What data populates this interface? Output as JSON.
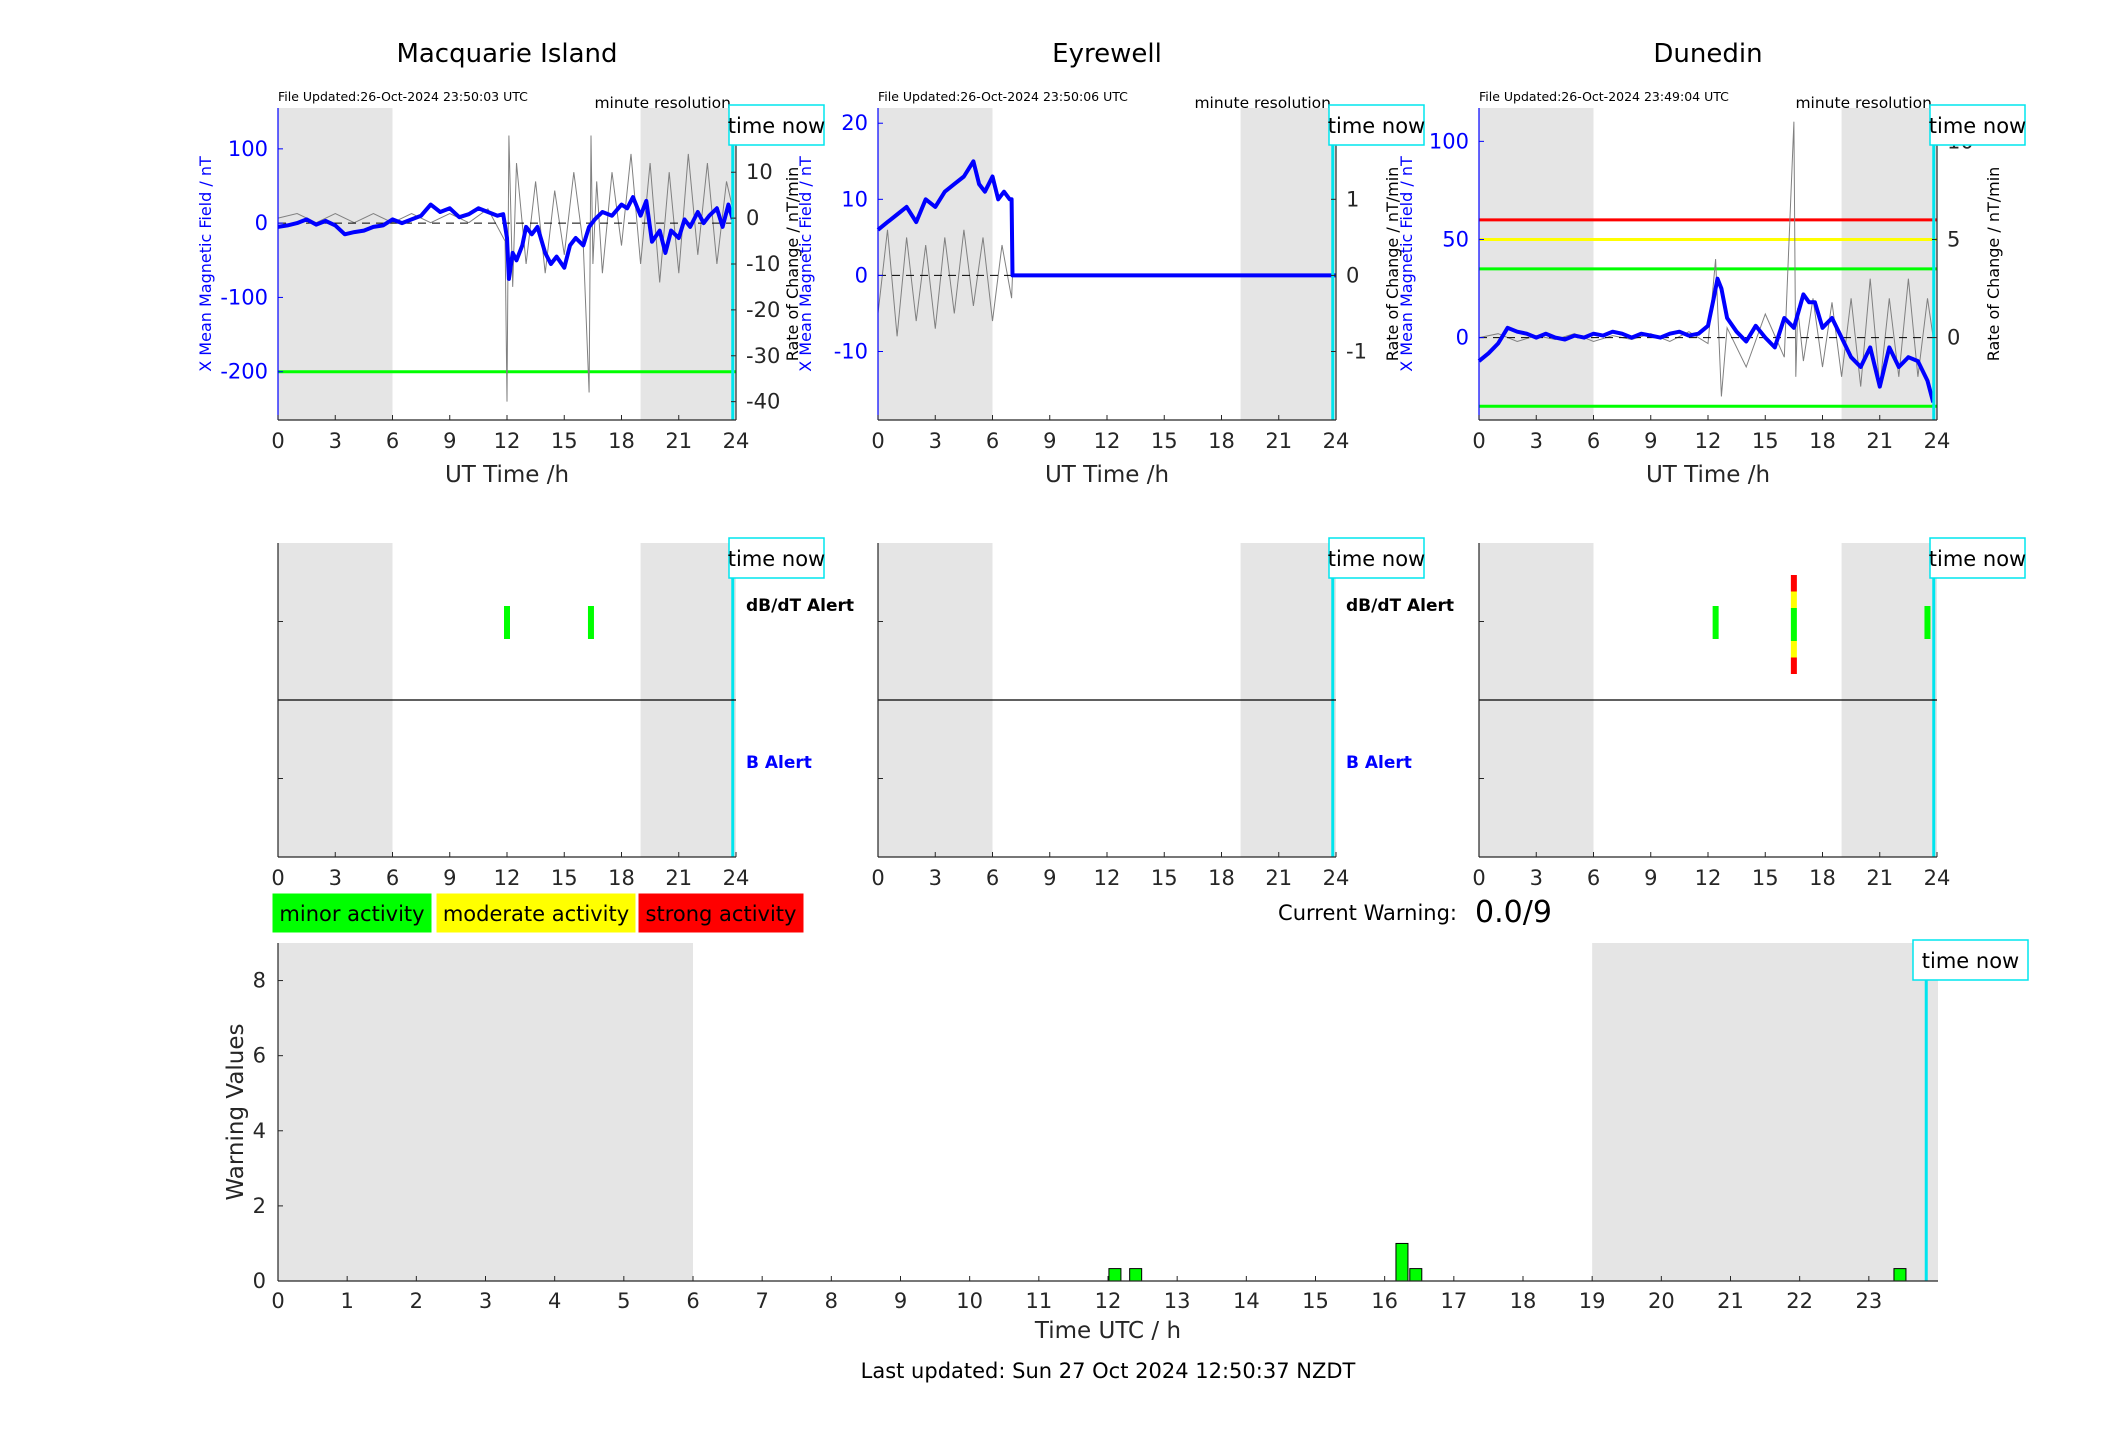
{
  "colors": {
    "shade": "#e5e5e5",
    "field": "#0000ff",
    "rate": "#808080",
    "time_now": "#00e5ee",
    "minor": "#00ff00",
    "moderate": "#ffff00",
    "strong": "#ff0000",
    "axis": "#262626"
  },
  "labels": {
    "file_updated_prefix": "File Updated:",
    "minute_resolution": "minute resolution",
    "time_now": "time now",
    "ut_xlabel": "UT Time /h",
    "left_ylabel": "X Mean Magnetic Field / nT",
    "right_ylabel": "Rate of Change / nT/min",
    "dbdt_alert": "dB/dT Alert",
    "b_alert": "B Alert"
  },
  "legend": [
    {
      "key": "minor",
      "label": "minor activity"
    },
    {
      "key": "moderate",
      "label": "moderate activity"
    },
    {
      "key": "strong",
      "label": "strong activity"
    }
  ],
  "current_warning": {
    "label": "Current Warning:",
    "value": "0.0/9"
  },
  "footer": "Last updated: Sun 27 Oct 2024 12:50:37 NZDT",
  "chart_data": [
    {
      "type": "line",
      "title": "Macquarie Island",
      "file_updated": "26-Oct-2024 23:50:03 UTC",
      "xlabel": "UT Time /h",
      "ylabel_left": "X Mean Magnetic Field / nT",
      "ylabel_right": "Rate of Change / nT/min",
      "xlim": [
        0,
        24
      ],
      "xticks": [
        0,
        3,
        6,
        9,
        12,
        15,
        18,
        21,
        24
      ],
      "ylim_left": [
        -265,
        155
      ],
      "yticks_left": [
        100,
        0,
        -100,
        -200
      ],
      "ylim_right": [
        -44,
        24
      ],
      "yticks_right": [
        20,
        10,
        0,
        -10,
        -20,
        -30,
        -40
      ],
      "shaded_hours": [
        [
          0,
          6
        ],
        [
          19,
          24
        ]
      ],
      "time_now_h": 23.83,
      "threshold_lines": [
        {
          "value": -200,
          "color": "#00ff00"
        }
      ],
      "field_series": {
        "name": "X Mean Magnetic Field",
        "x": [
          0,
          0.5,
          1,
          1.5,
          2,
          2.5,
          3,
          3.5,
          4,
          4.5,
          5,
          5.5,
          6,
          6.5,
          7,
          7.5,
          8,
          8.5,
          9,
          9.5,
          10,
          10.5,
          11,
          11.5,
          11.8,
          12,
          12.1,
          12.3,
          12.5,
          12.8,
          13,
          13.3,
          13.6,
          14,
          14.3,
          14.6,
          15,
          15.3,
          15.6,
          16,
          16.3,
          16.6,
          17,
          17.5,
          18,
          18.3,
          18.6,
          19,
          19.3,
          19.6,
          20,
          20.3,
          20.6,
          21,
          21.3,
          21.6,
          22,
          22.3,
          22.6,
          23,
          23.3,
          23.6,
          23.83
        ],
        "y": [
          -5,
          -3,
          0,
          5,
          -2,
          3,
          -3,
          -15,
          -12,
          -10,
          -5,
          -3,
          5,
          0,
          5,
          10,
          25,
          15,
          20,
          8,
          12,
          20,
          15,
          10,
          12,
          -20,
          -75,
          -40,
          -50,
          -30,
          -5,
          -15,
          -5,
          -40,
          -55,
          -45,
          -60,
          -30,
          -20,
          -30,
          -5,
          5,
          15,
          10,
          25,
          20,
          35,
          10,
          30,
          -25,
          -10,
          -40,
          -10,
          -20,
          5,
          -5,
          15,
          0,
          10,
          20,
          -5,
          25,
          5
        ],
        "ylim": [
          -265,
          155
        ]
      },
      "rate_series": {
        "name": "Rate of Change",
        "x": [
          0,
          1,
          2,
          3,
          4,
          5,
          6,
          7,
          8,
          9,
          10,
          11,
          11.9,
          12,
          12.1,
          12.3,
          12.5,
          13,
          13.5,
          14,
          14.5,
          15,
          15.5,
          16,
          16.3,
          16.4,
          16.5,
          16.7,
          17,
          17.5,
          18,
          18.5,
          19,
          19.5,
          20,
          20.5,
          21,
          21.5,
          22,
          22.5,
          23,
          23.5,
          23.83
        ],
        "y": [
          0,
          1,
          -1,
          1,
          -1,
          1,
          -1,
          1,
          -1,
          1,
          -1,
          2,
          -5,
          -40,
          18,
          -15,
          12,
          -10,
          8,
          -12,
          6,
          -8,
          10,
          -6,
          -38,
          18,
          -10,
          8,
          -12,
          10,
          -6,
          14,
          -10,
          12,
          -14,
          10,
          -12,
          14,
          -8,
          12,
          -10,
          8,
          2
        ],
        "ylim": [
          -44,
          24
        ]
      },
      "zero_lines": {
        "left": 0,
        "right": 0
      }
    },
    {
      "type": "line",
      "title": "Eyrewell",
      "file_updated": "26-Oct-2024 23:50:06 UTC",
      "xlabel": "UT Time /h",
      "ylabel_left": "X Mean Magnetic Field / nT",
      "ylabel_right": "Rate of Change / nT/min",
      "xlim": [
        0,
        24
      ],
      "xticks": [
        0,
        3,
        6,
        9,
        12,
        15,
        18,
        21,
        24
      ],
      "ylim_left": [
        -19,
        22
      ],
      "yticks_left": [
        20,
        10,
        0,
        -10
      ],
      "ylim_right": [
        -1.9,
        2.2
      ],
      "yticks_right": [
        2,
        1,
        0,
        -1
      ],
      "shaded_hours": [
        [
          0,
          6
        ],
        [
          19,
          24
        ]
      ],
      "time_now_h": 23.83,
      "threshold_lines": [],
      "field_series": {
        "name": "X Mean Magnetic Field",
        "x": [
          0,
          0.5,
          1,
          1.5,
          2,
          2.5,
          3,
          3.5,
          4,
          4.5,
          5,
          5.3,
          5.6,
          6,
          6.3,
          6.6,
          6.9,
          7.0,
          7.05,
          24
        ],
        "y": [
          6,
          7,
          8,
          9,
          7,
          10,
          9,
          11,
          12,
          13,
          15,
          12,
          11,
          13,
          10,
          11,
          10,
          10,
          0,
          0
        ],
        "ylim": [
          -19,
          22
        ]
      },
      "rate_series": {
        "name": "Rate of Change",
        "x": [
          0,
          0.5,
          1,
          1.5,
          2,
          2.5,
          3,
          3.5,
          4,
          4.5,
          5,
          5.5,
          6,
          6.5,
          7,
          7.05,
          24
        ],
        "y": [
          -0.5,
          0.6,
          -0.8,
          0.5,
          -0.6,
          0.4,
          -0.7,
          0.5,
          -0.5,
          0.6,
          -0.4,
          0.5,
          -0.6,
          0.4,
          -0.3,
          0,
          0
        ],
        "ylim": [
          -1.9,
          2.2
        ]
      },
      "zero_lines": {
        "left": 0,
        "right": 0
      }
    },
    {
      "type": "line",
      "title": "Dunedin",
      "file_updated": "26-Oct-2024 23:49:04 UTC",
      "xlabel": "UT Time /h",
      "ylabel_left": "X Mean Magnetic Field / nT",
      "ylabel_right": "Rate of Change / nT/min",
      "xlim": [
        0,
        24
      ],
      "xticks": [
        0,
        3,
        6,
        9,
        12,
        15,
        18,
        21,
        24
      ],
      "ylim_left": [
        -42,
        117
      ],
      "yticks_left": [
        100,
        50,
        0
      ],
      "ylim_right": [
        -4.2,
        11.7
      ],
      "yticks_right": [
        10,
        5,
        0
      ],
      "shaded_hours": [
        [
          0,
          6
        ],
        [
          19,
          24
        ]
      ],
      "time_now_h": 23.83,
      "threshold_lines": [
        {
          "value": 60,
          "color": "#ff0000"
        },
        {
          "value": 50,
          "color": "#ffff00"
        },
        {
          "value": 35,
          "color": "#00ff00"
        },
        {
          "value": -35,
          "color": "#00ff00"
        }
      ],
      "field_series": {
        "name": "X Mean Magnetic Field",
        "x": [
          0,
          0.5,
          1,
          1.5,
          2,
          2.5,
          3,
          3.5,
          4,
          4.5,
          5,
          5.5,
          6,
          6.5,
          7,
          7.5,
          8,
          8.5,
          9,
          9.5,
          10,
          10.5,
          11,
          11.5,
          12,
          12.3,
          12.5,
          12.7,
          13,
          13.5,
          14,
          14.5,
          15,
          15.5,
          16,
          16.5,
          17,
          17.3,
          17.6,
          18,
          18.5,
          19,
          19.5,
          20,
          20.5,
          21,
          21.5,
          22,
          22.5,
          23,
          23.5,
          23.8
        ],
        "y": [
          -12,
          -8,
          -3,
          5,
          3,
          2,
          0,
          2,
          0,
          -1,
          1,
          0,
          2,
          1,
          3,
          2,
          0,
          2,
          1,
          0,
          2,
          3,
          1,
          2,
          6,
          20,
          30,
          25,
          10,
          3,
          -2,
          6,
          0,
          -5,
          10,
          5,
          22,
          18,
          18,
          5,
          10,
          0,
          -10,
          -15,
          -5,
          -25,
          -5,
          -15,
          -10,
          -12,
          -22,
          -33
        ],
        "ylim": [
          -42,
          117
        ]
      },
      "rate_series": {
        "name": "Rate of Change",
        "x": [
          0,
          1,
          2,
          3,
          4,
          5,
          6,
          7,
          8,
          9,
          10,
          11,
          12,
          12.4,
          12.7,
          13,
          14,
          15,
          16,
          16.5,
          16.6,
          16.7,
          17,
          17.5,
          18,
          18.5,
          19,
          19.5,
          20,
          20.5,
          21,
          21.5,
          22,
          22.5,
          23,
          23.5,
          23.8
        ],
        "y": [
          0,
          0.2,
          -0.2,
          0.1,
          -0.1,
          0.2,
          -0.2,
          0.1,
          -0.1,
          0.2,
          -0.2,
          0.3,
          -0.3,
          4,
          -3,
          0.5,
          -1.5,
          1.2,
          -1,
          11,
          -2,
          1.5,
          -1.2,
          2,
          -1.5,
          1.8,
          -2,
          2,
          -2.5,
          3,
          -2.5,
          2,
          -2,
          3,
          -2,
          2,
          0
        ],
        "ylim": [
          -4.2,
          11.7
        ]
      },
      "zero_lines": {
        "left": 0,
        "right": 0
      }
    },
    {
      "type": "bar",
      "title": "",
      "xlim": [
        0,
        24
      ],
      "xticks": [
        0,
        3,
        6,
        9,
        12,
        15,
        18,
        21,
        24
      ],
      "shaded_hours": [
        [
          0,
          6
        ],
        [
          19,
          24
        ]
      ],
      "time_now_h": 23.83,
      "rows": [
        "dB/dT Alert",
        "B Alert"
      ],
      "alerts": [
        {
          "row": "dB/dT Alert",
          "hour": 12.0,
          "level": "minor"
        },
        {
          "row": "dB/dT Alert",
          "hour": 16.4,
          "level": "minor"
        }
      ]
    },
    {
      "type": "bar",
      "title": "",
      "xlim": [
        0,
        24
      ],
      "xticks": [
        0,
        3,
        6,
        9,
        12,
        15,
        18,
        21,
        24
      ],
      "shaded_hours": [
        [
          0,
          6
        ],
        [
          19,
          24
        ]
      ],
      "time_now_h": 23.83,
      "rows": [
        "dB/dT Alert",
        "B Alert"
      ],
      "alerts": []
    },
    {
      "type": "bar",
      "title": "",
      "xlim": [
        0,
        24
      ],
      "xticks": [
        0,
        3,
        6,
        9,
        12,
        15,
        18,
        21,
        24
      ],
      "shaded_hours": [
        [
          0,
          6
        ],
        [
          19,
          24
        ]
      ],
      "time_now_h": 23.83,
      "rows": [
        "dB/dT Alert",
        "B Alert"
      ],
      "alerts": [
        {
          "row": "dB/dT Alert",
          "hour": 12.4,
          "level": "minor"
        },
        {
          "row": "dB/dT Alert",
          "hour": 16.5,
          "level": "strong"
        },
        {
          "row": "dB/dT Alert",
          "hour": 23.5,
          "level": "minor"
        }
      ]
    },
    {
      "type": "bar",
      "title": "",
      "xlabel": "Time UTC / h",
      "ylabel": "Warning Values",
      "xlim": [
        0,
        24
      ],
      "xticks": [
        0,
        1,
        2,
        3,
        4,
        5,
        6,
        7,
        8,
        9,
        10,
        11,
        12,
        13,
        14,
        15,
        16,
        17,
        18,
        19,
        20,
        21,
        22,
        23
      ],
      "ylim": [
        0,
        9
      ],
      "yticks": [
        0,
        2,
        4,
        6,
        8
      ],
      "shaded_hours": [
        [
          0,
          6
        ],
        [
          19,
          24
        ]
      ],
      "time_now_h": 23.83,
      "bars": [
        {
          "hour": 12.1,
          "value": 0.33
        },
        {
          "hour": 12.4,
          "value": 0.33
        },
        {
          "hour": 16.25,
          "value": 1.0
        },
        {
          "hour": 16.45,
          "value": 0.33
        },
        {
          "hour": 23.45,
          "value": 0.33
        }
      ]
    }
  ]
}
